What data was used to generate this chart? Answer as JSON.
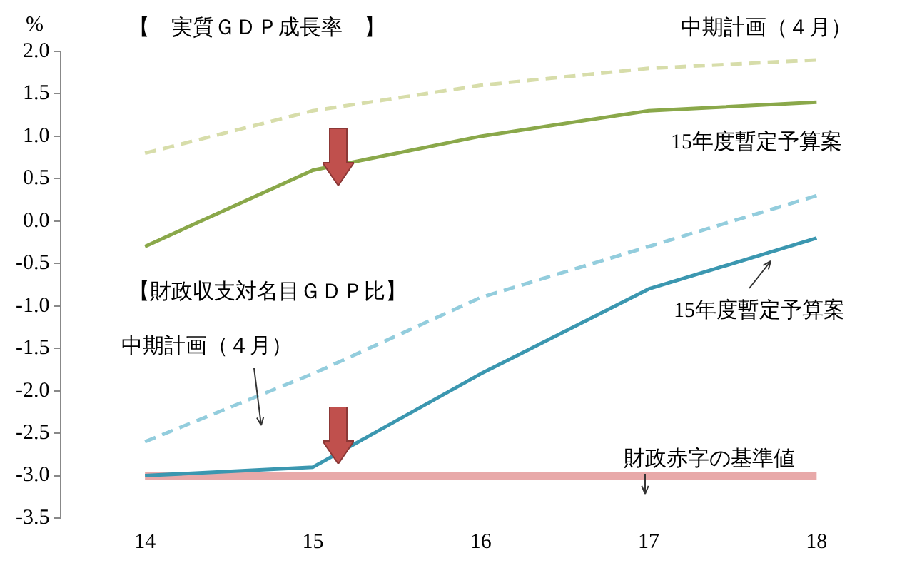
{
  "chart_data": {
    "type": "line",
    "ylabel": "%",
    "categories": [
      "14",
      "15",
      "16",
      "17",
      "18"
    ],
    "annotations": [
      "【　実質ＧＤＰ成長率　】",
      "【財政収支対名目ＧＤＰ比】"
    ],
    "series": [
      {
        "name": "中期計画（４月）",
        "color": "#d7ddaa",
        "line_style": "dashed",
        "values": [
          0.8,
          1.3,
          1.6,
          1.8,
          1.9
        ]
      },
      {
        "name": "15年度暫定予算案",
        "color": "#8aa84a",
        "line_style": "solid",
        "values": [
          -0.3,
          0.6,
          1.0,
          1.3,
          1.4
        ]
      },
      {
        "name": "中期計画（４月）",
        "color": "#93cddd",
        "line_style": "dashed",
        "values": [
          -2.6,
          -1.8,
          -0.9,
          -0.3,
          0.3
        ]
      },
      {
        "name": "15年度暫定予算案",
        "color": "#3b97b0",
        "line_style": "solid",
        "values": [
          -3.0,
          -2.9,
          -1.8,
          -0.8,
          -0.2
        ]
      },
      {
        "name": "財政赤字の基準値",
        "color": "#e8a9a9",
        "line_style": "solid",
        "values": [
          -3.0,
          -3.0,
          -3.0,
          -3.0,
          -3.0
        ]
      }
    ],
    "ylim": [
      -3.5,
      2.0
    ],
    "yticks": [
      {
        "value": 2,
        "label": "2.0"
      },
      {
        "value": 1.5,
        "label": "1.5"
      },
      {
        "value": 1,
        "label": "1.0"
      },
      {
        "value": 0.5,
        "label": "0.5"
      },
      {
        "value": 0,
        "label": "0.0"
      },
      {
        "value": -0.5,
        "label": "-0.5"
      },
      {
        "value": -1,
        "label": "-1.0"
      },
      {
        "value": -1.5,
        "label": "-1.5"
      },
      {
        "value": -2,
        "label": "-2.0"
      },
      {
        "value": -2.5,
        "label": "-2.5"
      },
      {
        "value": -3,
        "label": "-3.0"
      },
      {
        "value": -3.5,
        "label": "-3.5"
      }
    ],
    "grid": false,
    "legend": false,
    "marker": "none"
  }
}
